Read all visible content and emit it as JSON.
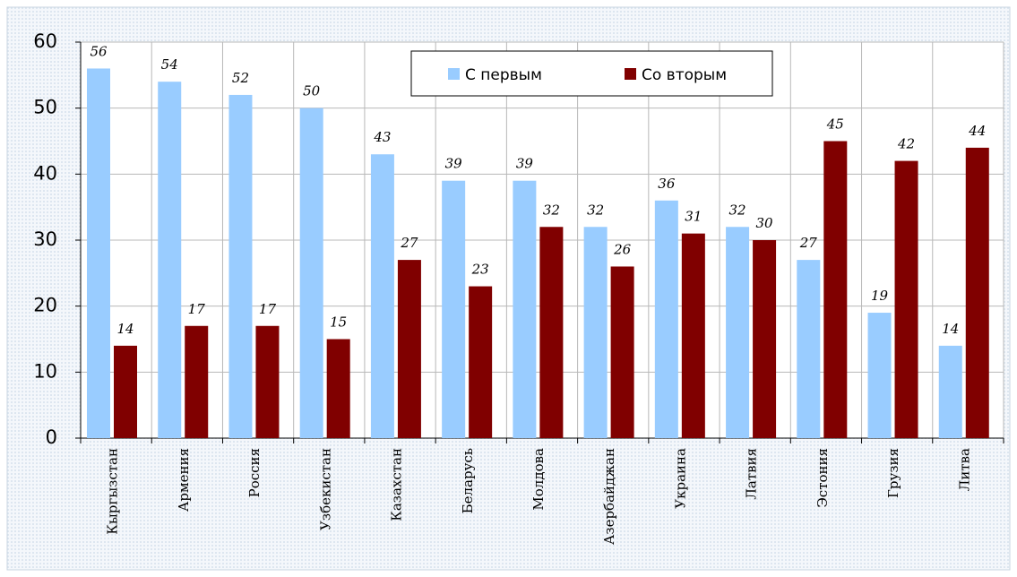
{
  "chart_data": {
    "type": "bar",
    "categories": [
      "Кыргызстан",
      "Армения",
      "Россия",
      "Узбекистан",
      "Казахстан",
      "Беларусь",
      "Молдова",
      "Азербайджан",
      "Украина",
      "Латвия",
      "Эстония",
      "Грузия",
      "Литва"
    ],
    "series": [
      {
        "name": "С первым",
        "color": "#99ccff",
        "values": [
          56,
          54,
          52,
          50,
          43,
          39,
          39,
          32,
          36,
          32,
          27,
          19,
          14
        ]
      },
      {
        "name": "Со вторым",
        "color": "#800000",
        "values": [
          14,
          17,
          17,
          15,
          27,
          23,
          32,
          26,
          31,
          30,
          45,
          42,
          44
        ]
      }
    ],
    "ylim": [
      0,
      60
    ],
    "yticks": [
      0,
      10,
      20,
      30,
      40,
      50,
      60
    ],
    "grid": true
  }
}
